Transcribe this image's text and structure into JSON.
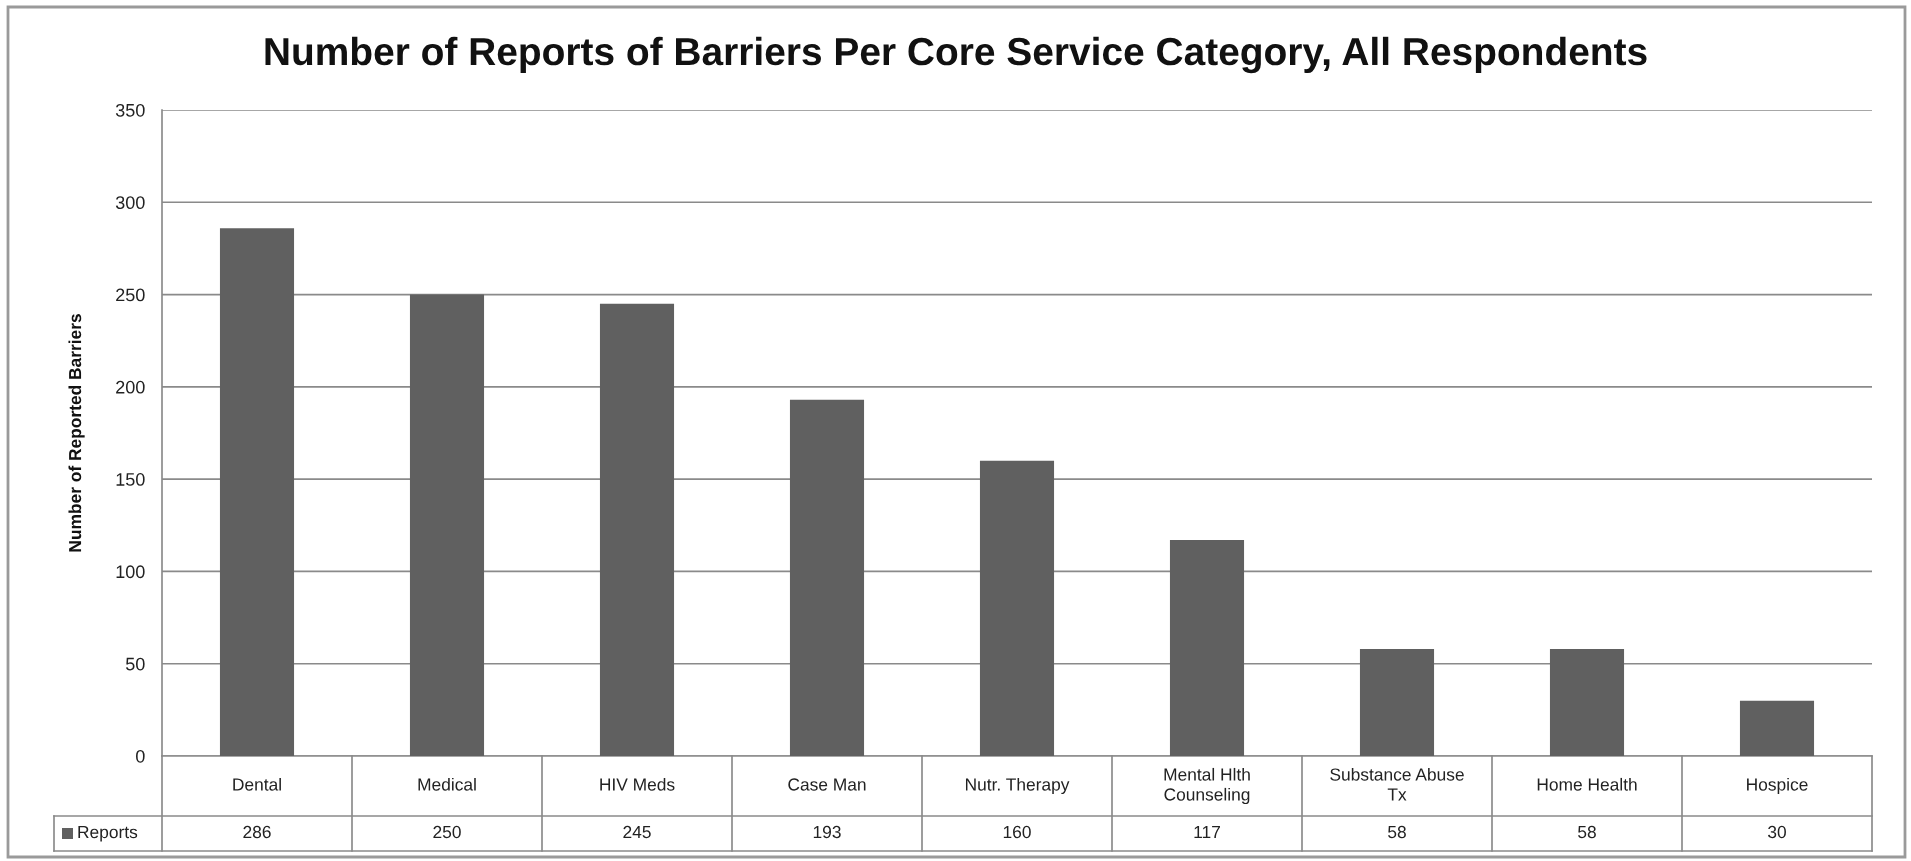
{
  "chart_data": {
    "type": "bar",
    "title": "Number of Reports of Barriers Per Core Service Category, All Respondents",
    "ylabel": "Number of Reported Barriers",
    "categories": [
      "Dental",
      "Medical",
      "HIV Meds",
      "Case Man",
      "Nutr. Therapy",
      "Mental Hlth\nCounseling",
      "Substance Abuse\nTx",
      "Home Health",
      "Hospice"
    ],
    "series": [
      {
        "name": "Reports",
        "color": "#606060",
        "values": [
          286,
          250,
          245,
          193,
          160,
          117,
          58,
          58,
          30
        ]
      }
    ],
    "ylim": [
      0,
      350
    ],
    "yticks": [
      0,
      50,
      100,
      150,
      200,
      250,
      300,
      350
    ],
    "grid": "y",
    "legend": "bottom left",
    "data_labels": true
  }
}
